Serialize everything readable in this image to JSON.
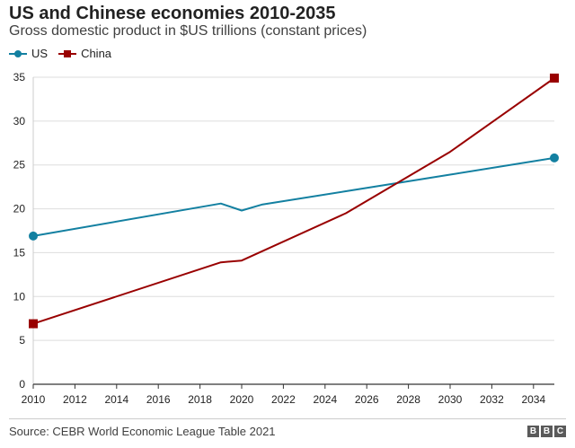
{
  "chart_data": {
    "type": "line",
    "title": "US and Chinese economies 2010-2035",
    "subtitle": "Gross domestic product in $US trillions (constant prices)",
    "xlabel": "",
    "ylabel": "",
    "xlim": [
      2010,
      2035
    ],
    "ylim": [
      0,
      35
    ],
    "x_ticks": [
      2010,
      2012,
      2014,
      2016,
      2018,
      2020,
      2022,
      2024,
      2026,
      2028,
      2030,
      2032,
      2034
    ],
    "y_ticks": [
      0,
      5,
      10,
      15,
      20,
      25,
      30,
      35
    ],
    "grid": "horizontal",
    "legend_position": "top-left",
    "series": [
      {
        "name": "US",
        "color": "#1380A1",
        "marker": "circle",
        "x": [
          2010,
          2019,
          2020,
          2021,
          2025,
          2030,
          2035
        ],
        "y": [
          16.9,
          20.6,
          19.8,
          20.5,
          22.0,
          23.9,
          25.8
        ]
      },
      {
        "name": "China",
        "color": "#990000",
        "marker": "square",
        "x": [
          2010,
          2019,
          2020,
          2025,
          2030,
          2035
        ],
        "y": [
          6.9,
          13.9,
          14.1,
          19.5,
          26.5,
          34.9
        ]
      }
    ]
  },
  "footer": {
    "source": "Source: CEBR World Economic League Table 2021",
    "logo_letters": [
      "B",
      "B",
      "C"
    ]
  }
}
